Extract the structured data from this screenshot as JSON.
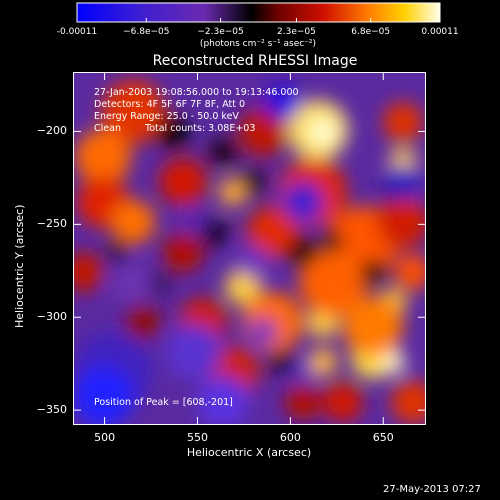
{
  "colorbar": {
    "ticks": [
      "-0.00011",
      "−6.8e−05",
      "−2.3e−05",
      "2.3e−05",
      "6.8e−05",
      "0.00011"
    ],
    "tick_values": [
      -0.00011,
      -6.8e-05,
      -2.3e-05,
      2.3e-05,
      6.8e-05,
      0.00011
    ],
    "units": "(photons cm⁻² s⁻¹ asec⁻²)",
    "range": [
      -0.00011,
      0.00011
    ]
  },
  "chart_data": {
    "type": "heatmap",
    "title": "Reconstructed RHESSI Image",
    "xlabel": "Heliocentric X (arcsec)",
    "ylabel": "Heliocentric Y (arcsec)",
    "xlim": [
      483,
      673
    ],
    "ylim": [
      -358,
      -168
    ],
    "x_ticks": [
      500,
      550,
      600,
      650
    ],
    "y_ticks": [
      -200,
      -250,
      -300,
      -350
    ],
    "peak": {
      "x": 608,
      "y": -201
    },
    "annotations": {
      "line1": "27-Jan-2003 19:08:56.000 to 19:13:46.000",
      "line2": "Detectors: 4F 5F 6F 7F 8F, Att 0",
      "line3": "Energy Range: 25.0 - 50.0 keV",
      "line4_a": "Clean",
      "line4_b": "Total counts: 3.08E+03",
      "peak_label": "Position of Peak = [608,-201]"
    }
  },
  "footer": {
    "timestamp": "27-May-2013 07:27"
  }
}
